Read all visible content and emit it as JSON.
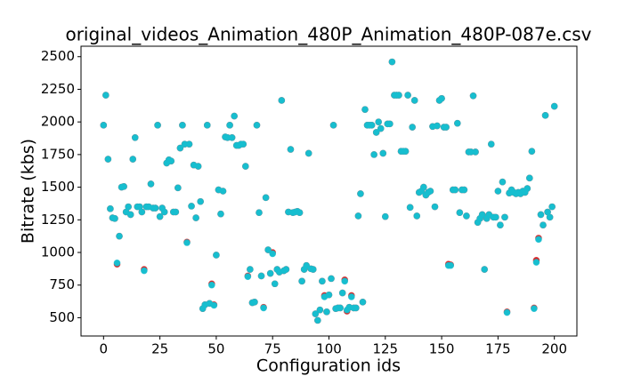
{
  "chart_data": {
    "type": "scatter",
    "title": "original_videos_Animation_480P_Animation_480P-087e.csv",
    "x_label": "Configuration ids",
    "y_label": "Bitrate (kbs)",
    "xlim": [
      -10,
      210
    ],
    "ylim": [
      360,
      2580
    ],
    "xticks": [
      0,
      25,
      50,
      75,
      100,
      125,
      150,
      175,
      200
    ],
    "yticks": [
      500,
      750,
      1000,
      1250,
      1500,
      1750,
      2000,
      2250,
      2500
    ],
    "x": [
      0,
      1,
      2,
      3,
      4,
      5,
      6,
      7,
      8,
      9,
      10,
      11,
      12,
      13,
      14,
      15,
      16,
      17,
      18,
      19,
      20,
      21,
      22,
      23,
      24,
      25,
      26,
      27,
      28,
      29,
      30,
      31,
      32,
      33,
      34,
      35,
      36,
      37,
      38,
      39,
      40,
      41,
      42,
      43,
      44,
      45,
      46,
      47,
      48,
      49,
      50,
      51,
      52,
      53,
      54,
      55,
      56,
      57,
      58,
      59,
      60,
      61,
      62,
      63,
      64,
      65,
      66,
      67,
      68,
      69,
      70,
      71,
      72,
      73,
      74,
      75,
      76,
      77,
      78,
      79,
      80,
      81,
      82,
      83,
      84,
      85,
      86,
      87,
      88,
      89,
      90,
      91,
      92,
      93,
      94,
      95,
      96,
      97,
      98,
      99,
      100,
      101,
      102,
      103,
      104,
      105,
      106,
      107,
      108,
      109,
      110,
      111,
      112,
      113,
      114,
      115,
      116,
      117,
      118,
      119,
      120,
      121,
      122,
      123,
      124,
      125,
      126,
      127,
      128,
      129,
      130,
      131,
      132,
      133,
      134,
      135,
      136,
      137,
      138,
      139,
      140,
      141,
      142,
      143,
      144,
      145,
      146,
      147,
      148,
      149,
      150,
      151,
      152,
      153,
      154,
      155,
      156,
      157,
      158,
      159,
      160,
      161,
      162,
      163,
      164,
      165,
      166,
      167,
      168,
      169,
      170,
      171,
      172,
      173,
      174,
      175,
      176,
      177,
      178,
      179,
      180,
      181,
      182,
      183,
      184,
      185,
      186,
      187,
      188,
      189,
      190,
      191,
      192,
      193,
      194,
      195,
      196,
      197,
      198,
      199,
      200
    ],
    "series": [
      {
        "color": "#d62728",
        "values": [
          1975,
          2205,
          1715,
          1335,
          1265,
          1260,
          910,
          1125,
          1500,
          1505,
          1310,
          1350,
          1290,
          1715,
          1880,
          1350,
          1350,
          1310,
          870,
          1350,
          1350,
          1525,
          1340,
          1340,
          1975,
          1275,
          1340,
          1310,
          1685,
          1710,
          1700,
          1310,
          1310,
          1495,
          1800,
          1975,
          1830,
          1080,
          1830,
          1355,
          1670,
          1265,
          1660,
          1390,
          570,
          600,
          1975,
          610,
          760,
          600,
          980,
          1480,
          1295,
          1470,
          1885,
          1880,
          1975,
          1880,
          2045,
          1820,
          1820,
          1830,
          1830,
          1660,
          820,
          870,
          615,
          620,
          1975,
          1305,
          820,
          580,
          1420,
          1020,
          840,
          1000,
          760,
          870,
          850,
          2165,
          860,
          870,
          1310,
          1790,
          1305,
          1310,
          1315,
          1305,
          780,
          870,
          900,
          1760,
          875,
          870,
          530,
          480,
          560,
          780,
          670,
          545,
          675,
          800,
          1975,
          570,
          575,
          575,
          690,
          790,
          550,
          580,
          670,
          575,
          575,
          1280,
          1450,
          620,
          2095,
          1975,
          1975,
          1975,
          1750,
          1920,
          2000,
          1950,
          1760,
          1275,
          1985,
          1985,
          2460,
          2205,
          2205,
          2205,
          1775,
          1775,
          1775,
          2205,
          1345,
          1960,
          2165,
          1280,
          1460,
          1470,
          1500,
          1440,
          1460,
          1470,
          1965,
          1350,
          1970,
          2165,
          2180,
          1960,
          1960,
          910,
          905,
          1480,
          1480,
          1990,
          1305,
          1480,
          1480,
          1280,
          1770,
          1770,
          2200,
          1770,
          1230,
          1260,
          1290,
          870,
          1260,
          1290,
          1830,
          1270,
          1270,
          1470,
          1210,
          1540,
          1270,
          545,
          1455,
          1480,
          1460,
          1450,
          1460,
          1450,
          1470,
          1460,
          1490,
          1570,
          1775,
          575,
          940,
          1110,
          1290,
          1210,
          2050,
          1310,
          1270,
          1350,
          2120
        ]
      },
      {
        "color": "#17becf",
        "values": [
          1975,
          2205,
          1715,
          1335,
          1265,
          1260,
          920,
          1125,
          1500,
          1505,
          1310,
          1350,
          1290,
          1715,
          1880,
          1350,
          1350,
          1310,
          860,
          1350,
          1350,
          1525,
          1340,
          1340,
          1975,
          1275,
          1340,
          1310,
          1685,
          1710,
          1700,
          1310,
          1310,
          1495,
          1800,
          1975,
          1830,
          1075,
          1830,
          1355,
          1670,
          1265,
          1660,
          1390,
          570,
          600,
          1975,
          610,
          750,
          595,
          980,
          1480,
          1295,
          1470,
          1885,
          1880,
          1975,
          1880,
          2045,
          1820,
          1820,
          1830,
          1830,
          1660,
          815,
          870,
          615,
          620,
          1975,
          1305,
          820,
          575,
          1420,
          1020,
          840,
          990,
          760,
          870,
          850,
          2165,
          860,
          870,
          1310,
          1790,
          1305,
          1310,
          1315,
          1305,
          780,
          870,
          900,
          1760,
          875,
          870,
          530,
          480,
          560,
          780,
          660,
          545,
          675,
          800,
          1975,
          570,
          575,
          575,
          690,
          780,
          560,
          580,
          660,
          575,
          575,
          1280,
          1450,
          620,
          2095,
          1975,
          1975,
          1975,
          1750,
          1920,
          2000,
          1950,
          1760,
          1275,
          1985,
          1985,
          2460,
          2205,
          2205,
          2205,
          1775,
          1775,
          1775,
          2205,
          1345,
          1960,
          2165,
          1280,
          1460,
          1470,
          1500,
          1440,
          1460,
          1470,
          1965,
          1350,
          1970,
          2165,
          2180,
          1960,
          1960,
          900,
          900,
          1480,
          1480,
          1990,
          1305,
          1480,
          1480,
          1280,
          1770,
          1770,
          2200,
          1770,
          1230,
          1260,
          1290,
          870,
          1260,
          1290,
          1830,
          1270,
          1270,
          1470,
          1210,
          1540,
          1270,
          540,
          1455,
          1480,
          1460,
          1450,
          1460,
          1450,
          1470,
          1460,
          1490,
          1570,
          1775,
          570,
          925,
          1100,
          1290,
          1210,
          2050,
          1310,
          1270,
          1350,
          2120
        ]
      }
    ]
  }
}
